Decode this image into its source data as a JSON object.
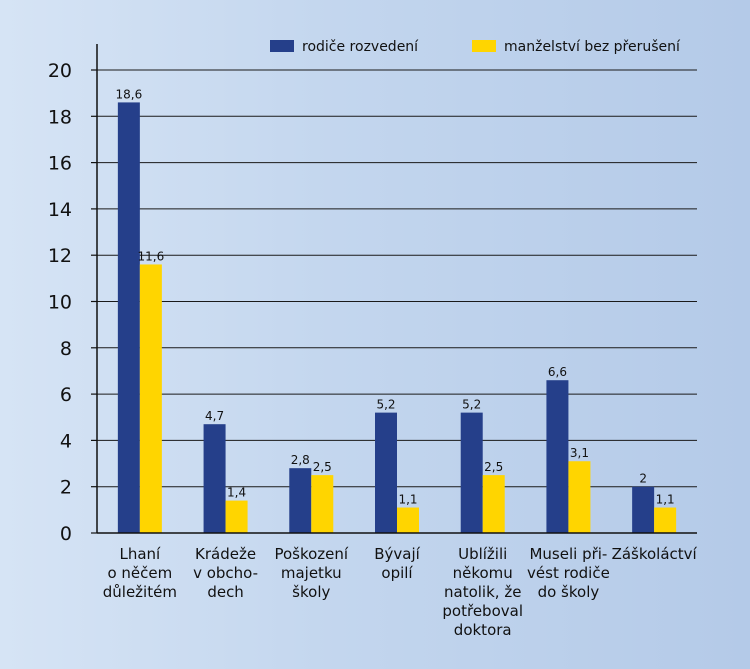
{
  "chart_data": {
    "type": "bar",
    "title": "",
    "xlabel": "",
    "ylabel": "",
    "ylim": [
      0,
      20
    ],
    "yticks": [
      0,
      2,
      4,
      6,
      8,
      10,
      12,
      14,
      16,
      18,
      20
    ],
    "grid": true,
    "legend_position": "top",
    "categories": [
      [
        "Lhaní",
        "o něčem",
        "důležitém"
      ],
      [
        "Krádeže",
        "v obcho-",
        "dech"
      ],
      [
        "Poškození",
        "majetku",
        "školy"
      ],
      [
        "Bývají",
        "opilí"
      ],
      [
        "Ublížili",
        "někomu",
        "natolik, že",
        "potřeboval",
        "doktora"
      ],
      [
        "Museli při-",
        "vést rodiče",
        "do školy"
      ],
      [
        "Záškoláctví"
      ]
    ],
    "series": [
      {
        "name": "rodiče rozvedení",
        "color": "#253f8a",
        "values": [
          18.6,
          4.7,
          2.8,
          5.2,
          5.2,
          6.6,
          2
        ],
        "labels": [
          "18,6",
          "4,7",
          "2,8",
          "5,2",
          "5,2",
          "6,6",
          "2"
        ]
      },
      {
        "name": "manželství bez přerušení",
        "color": "#ffd500",
        "values": [
          11.6,
          1.4,
          2.5,
          1.1,
          2.5,
          3.1,
          1.1
        ],
        "labels": [
          "11,6",
          "1,4",
          "2,5",
          "1,1",
          "2,5",
          "3,1",
          "1,1"
        ]
      }
    ]
  }
}
